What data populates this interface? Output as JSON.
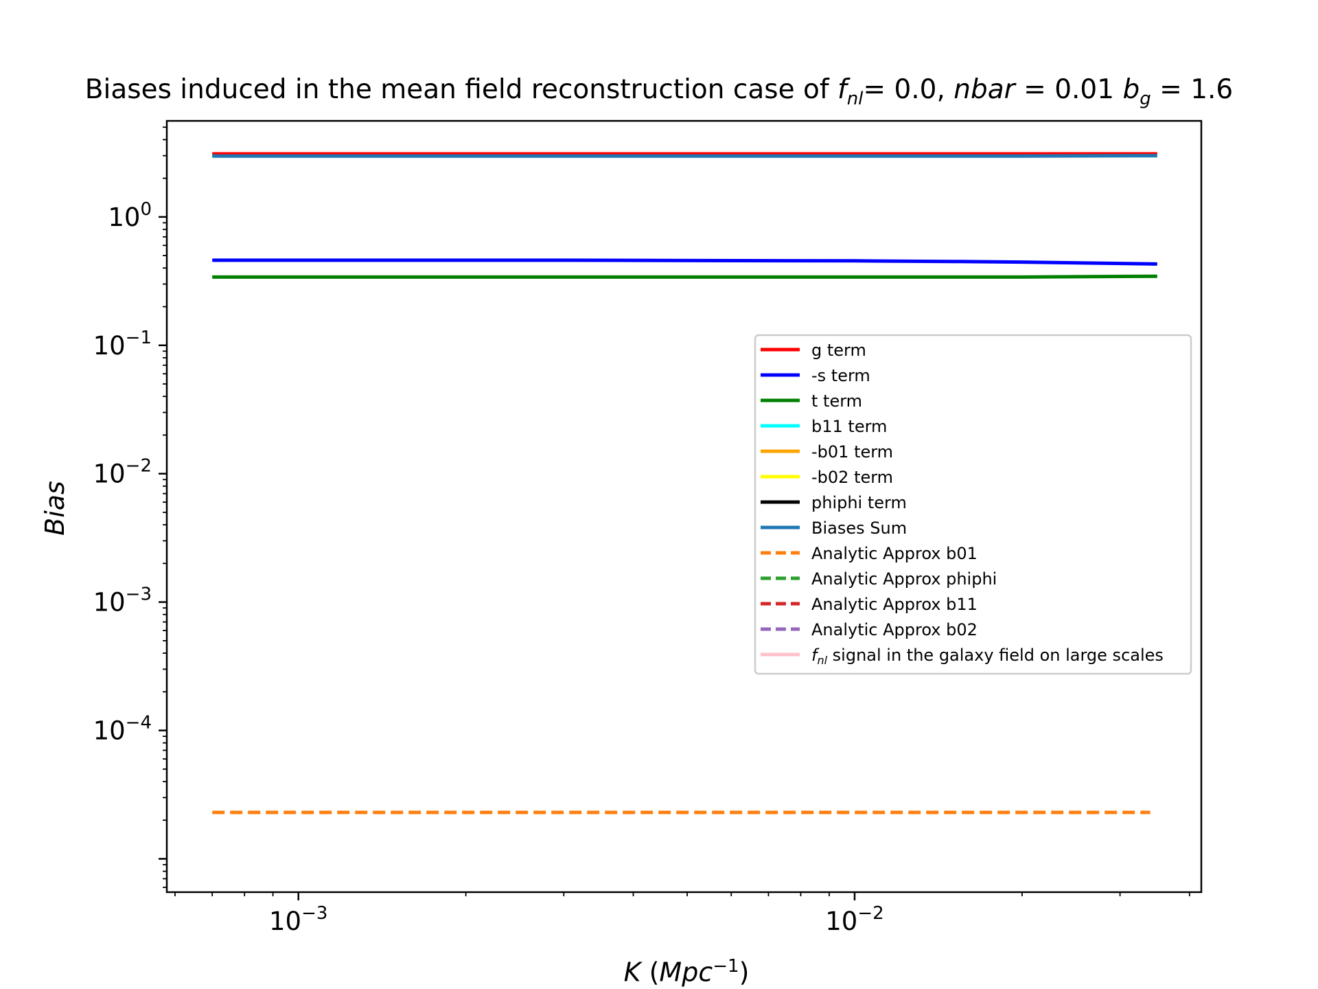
{
  "chart_data": {
    "type": "line",
    "title": "Biases induced in the mean field reconstruction case of f_nl = 0.0, nbar = 0.01 b_g = 1.6",
    "title_parts": {
      "prefix": "Biases induced in the mean field reconstruction case of ",
      "fnl_symbol": "f",
      "fnl_sub": "nl",
      "fnl_value": "= 0.0, ",
      "nbar_symbol": "nbar",
      "nbar_value": " = 0.01 ",
      "bg_symbol": "b",
      "bg_sub": "g",
      "bg_value": " = 1.6"
    },
    "xlabel": "K (Mpc⁻¹)",
    "xlabel_parts": {
      "K": "K",
      "open": " (",
      "unit": "Mpc",
      "sup": "−1",
      "close": ")"
    },
    "ylabel": "Bias",
    "x_scale": "log",
    "y_scale": "log",
    "xlim": [
      0.00058,
      0.042
    ],
    "ylim": [
      5.5e-06,
      5.6
    ],
    "x_ticks": [
      {
        "value": 0.001,
        "base": "10",
        "exp": "−3"
      },
      {
        "value": 0.01,
        "base": "10",
        "exp": "−2"
      }
    ],
    "y_ticks": [
      {
        "value": 1,
        "base": "10",
        "exp": "0"
      },
      {
        "value": 0.1,
        "base": "10",
        "exp": "−1"
      },
      {
        "value": 0.01,
        "base": "10",
        "exp": "−2"
      },
      {
        "value": 0.001,
        "base": "10",
        "exp": "−3"
      },
      {
        "value": 0.0001,
        "base": "10",
        "exp": "−4"
      }
    ],
    "grid": false,
    "legend_position": "center-right",
    "series": [
      {
        "name": "g term",
        "color": "#ff0000",
        "dash": "solid",
        "x": [
          0.0007,
          0.001,
          0.003,
          0.01,
          0.02,
          0.035
        ],
        "y": [
          3.1,
          3.1,
          3.1,
          3.1,
          3.1,
          3.1
        ]
      },
      {
        "name": "-s term",
        "color": "#0000ff",
        "dash": "solid",
        "x": [
          0.0007,
          0.001,
          0.003,
          0.01,
          0.015,
          0.02,
          0.035
        ],
        "y": [
          0.46,
          0.46,
          0.46,
          0.455,
          0.45,
          0.445,
          0.43
        ]
      },
      {
        "name": "t term",
        "color": "#008000",
        "dash": "solid",
        "x": [
          0.0007,
          0.001,
          0.003,
          0.01,
          0.02,
          0.035
        ],
        "y": [
          0.34,
          0.34,
          0.34,
          0.34,
          0.34,
          0.345
        ]
      },
      {
        "name": "b11 term",
        "color": "#00ffff",
        "dash": "solid",
        "x": [],
        "y": []
      },
      {
        "name": "-b01 term",
        "color": "#ffa500",
        "dash": "solid",
        "x": [],
        "y": []
      },
      {
        "name": "-b02 term",
        "color": "#ffff00",
        "dash": "solid",
        "x": [],
        "y": []
      },
      {
        "name": "phiphi term",
        "color": "#000000",
        "dash": "solid",
        "x": [],
        "y": []
      },
      {
        "name": "Biases Sum",
        "color": "#1f77b4",
        "dash": "solid",
        "x": [
          0.0007,
          0.001,
          0.003,
          0.01,
          0.02,
          0.035
        ],
        "y": [
          2.98,
          2.98,
          2.98,
          2.98,
          2.98,
          3.0
        ]
      },
      {
        "name": "Analytic Approx b01",
        "color": "#ff7f0e",
        "dash": "dashed",
        "x": [
          0.0007,
          0.001,
          0.003,
          0.01,
          0.02,
          0.034
        ],
        "y": [
          2.3e-05,
          2.3e-05,
          2.3e-05,
          2.3e-05,
          2.3e-05,
          2.3e-05
        ]
      },
      {
        "name": "Analytic Approx phiphi",
        "color": "#2ca02c",
        "dash": "dashed",
        "x": [],
        "y": []
      },
      {
        "name": "Analytic Approx b11",
        "color": "#d62728",
        "dash": "dashed",
        "x": [],
        "y": []
      },
      {
        "name": "Analytic Approx b02",
        "color": "#9467bd",
        "dash": "dashed",
        "x": [],
        "y": []
      },
      {
        "name": "f_nl signal in the galaxy field on large scales",
        "color": "#ffc0cb",
        "dash": "solid",
        "x": [],
        "y": []
      }
    ],
    "legend_last_parts": {
      "sym": "f",
      "sub": "nl",
      "rest": " signal in the galaxy field on large scales"
    }
  }
}
